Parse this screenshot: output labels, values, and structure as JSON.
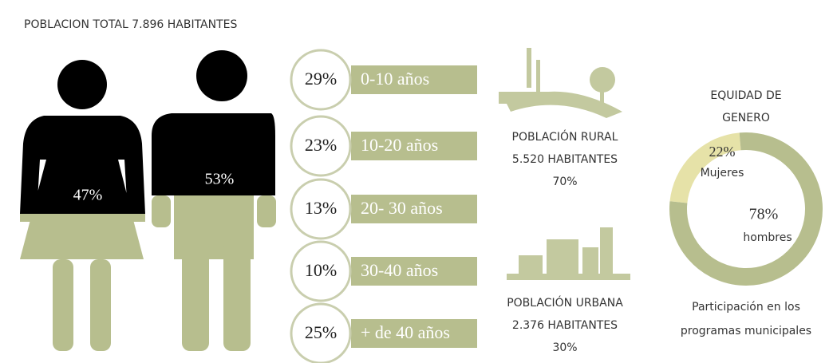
{
  "title": "POBLACION TOTAL 7.896 HABITANTES",
  "gender": {
    "women": "47%",
    "men": "53%"
  },
  "age_groups": [
    {
      "percent": "29%",
      "range": "0-10 años"
    },
    {
      "percent": "23%",
      "range": "10-20 años"
    },
    {
      "percent": "13%",
      "range": "20- 30 años"
    },
    {
      "percent": "10%",
      "range": "30-40 años"
    },
    {
      "percent": "25%",
      "range": "+ de 40 años"
    }
  ],
  "rural": [
    "POBLACIÓN RURAL",
    "5.520 HABITANTES",
    "70%"
  ],
  "urban": [
    "POBLACIÓN URBANA",
    "2.376 HABITANTES",
    "30%"
  ],
  "equity": {
    "title": [
      "EQUIDAD DE",
      "GENERO"
    ],
    "segments": [
      {
        "name": "Mujeres",
        "value": 22,
        "value_label": "22%",
        "color": "#e6e2a8"
      },
      {
        "name": "hombres",
        "value": 78,
        "value_label": "78%",
        "color": "#b7be8e"
      }
    ],
    "footer": [
      "Participación en los",
      "programas municipales"
    ]
  }
}
